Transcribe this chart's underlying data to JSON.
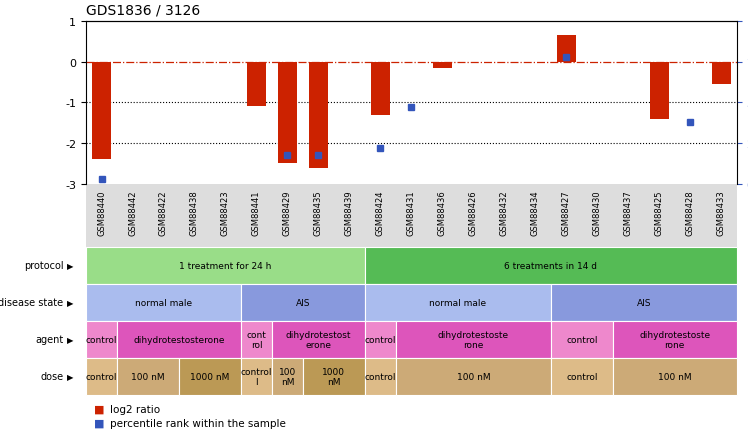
{
  "title": "GDS1836 / 3126",
  "samples": [
    "GSM88440",
    "GSM88442",
    "GSM88422",
    "GSM88438",
    "GSM88423",
    "GSM88441",
    "GSM88429",
    "GSM88435",
    "GSM88439",
    "GSM88424",
    "GSM88431",
    "GSM88436",
    "GSM88426",
    "GSM88432",
    "GSM88434",
    "GSM88427",
    "GSM88430",
    "GSM88437",
    "GSM88425",
    "GSM88428",
    "GSM88433"
  ],
  "log2_ratio": [
    -2.4,
    0,
    0,
    0,
    0,
    -1.1,
    -2.5,
    -2.6,
    0,
    -1.3,
    0,
    -0.15,
    0,
    0,
    0,
    0.65,
    0,
    0,
    -1.4,
    0,
    -0.55
  ],
  "percentile": [
    3,
    0,
    0,
    0,
    0,
    0,
    18,
    18,
    0,
    22,
    47,
    0,
    0,
    0,
    0,
    78,
    0,
    0,
    0,
    38,
    0
  ],
  "ylim_left": [
    -3,
    1
  ],
  "ylim_right": [
    0,
    100
  ],
  "hlines_dotted": [
    -1,
    -2
  ],
  "bar_color": "#cc2200",
  "dot_color": "#3355bb",
  "protocol_row": {
    "label": "protocol",
    "segments": [
      {
        "start": 0,
        "end": 9,
        "text": "1 treatment for 24 h",
        "color": "#99dd88"
      },
      {
        "start": 9,
        "end": 21,
        "text": "6 treatments in 14 d",
        "color": "#55bb55"
      }
    ]
  },
  "disease_state_row": {
    "label": "disease state",
    "segments": [
      {
        "start": 0,
        "end": 5,
        "text": "normal male",
        "color": "#aabcee"
      },
      {
        "start": 5,
        "end": 9,
        "text": "AIS",
        "color": "#8899dd"
      },
      {
        "start": 9,
        "end": 15,
        "text": "normal male",
        "color": "#aabcee"
      },
      {
        "start": 15,
        "end": 21,
        "text": "AIS",
        "color": "#8899dd"
      }
    ]
  },
  "agent_row": {
    "label": "agent",
    "segments": [
      {
        "start": 0,
        "end": 1,
        "text": "control",
        "color": "#ee88cc"
      },
      {
        "start": 1,
        "end": 5,
        "text": "dihydrotestosterone",
        "color": "#dd55bb"
      },
      {
        "start": 5,
        "end": 6,
        "text": "cont\nrol",
        "color": "#ee88cc"
      },
      {
        "start": 6,
        "end": 9,
        "text": "dihydrotestost\nerone",
        "color": "#dd55bb"
      },
      {
        "start": 9,
        "end": 10,
        "text": "control",
        "color": "#ee88cc"
      },
      {
        "start": 10,
        "end": 15,
        "text": "dihydrotestoste\nrone",
        "color": "#dd55bb"
      },
      {
        "start": 15,
        "end": 17,
        "text": "control",
        "color": "#ee88cc"
      },
      {
        "start": 17,
        "end": 21,
        "text": "dihydrotestoste\nrone",
        "color": "#dd55bb"
      }
    ]
  },
  "dose_row": {
    "label": "dose",
    "segments": [
      {
        "start": 0,
        "end": 1,
        "text": "control",
        "color": "#ddbb88"
      },
      {
        "start": 1,
        "end": 3,
        "text": "100 nM",
        "color": "#ccaa77"
      },
      {
        "start": 3,
        "end": 5,
        "text": "1000 nM",
        "color": "#bb9955"
      },
      {
        "start": 5,
        "end": 6,
        "text": "control\nl",
        "color": "#ddbb88"
      },
      {
        "start": 6,
        "end": 7,
        "text": "100\nnM",
        "color": "#ccaa77"
      },
      {
        "start": 7,
        "end": 9,
        "text": "1000\nnM",
        "color": "#bb9955"
      },
      {
        "start": 9,
        "end": 10,
        "text": "control",
        "color": "#ddbb88"
      },
      {
        "start": 10,
        "end": 15,
        "text": "100 nM",
        "color": "#ccaa77"
      },
      {
        "start": 15,
        "end": 17,
        "text": "control",
        "color": "#ddbb88"
      },
      {
        "start": 17,
        "end": 21,
        "text": "100 nM",
        "color": "#ccaa77"
      }
    ]
  }
}
